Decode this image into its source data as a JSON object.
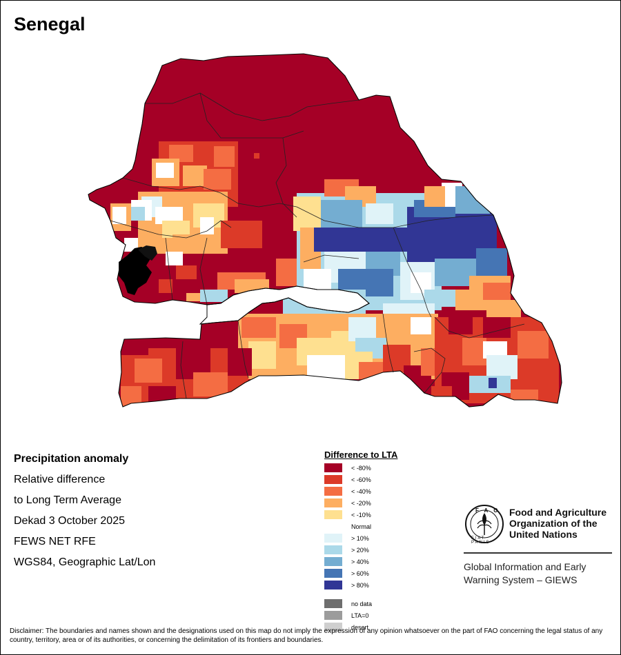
{
  "title": "Senegal",
  "info": {
    "heading": "Precipitation anomaly",
    "lines": [
      "Relative difference",
      "to Long Term Average",
      "Dekad 3 October 2025",
      "FEWS NET RFE",
      "WGS84, Geographic Lat/Lon"
    ]
  },
  "legend": {
    "title": "Difference to LTA",
    "items": [
      {
        "label": "< -80%",
        "color": "#a50026"
      },
      {
        "label": "< -60%",
        "color": "#dc3a28"
      },
      {
        "label": "< -40%",
        "color": "#f46d43"
      },
      {
        "label": "< -20%",
        "color": "#fdae61"
      },
      {
        "label": "< -10%",
        "color": "#fee090"
      },
      {
        "label": "> 10%",
        "color": "#e0f3f8"
      },
      {
        "label": "> 20%",
        "color": "#abd9e9"
      },
      {
        "label": "> 40%",
        "color": "#74add1"
      },
      {
        "label": "> 60%",
        "color": "#4575b4"
      },
      {
        "label": "> 80%",
        "color": "#313695"
      }
    ],
    "normal_label": "Normal",
    "extra": [
      {
        "label": "no data",
        "color": "#6e6e6e"
      },
      {
        "label": "LTA=0",
        "color": "#9c9c9c"
      },
      {
        "label": "desert",
        "color": "#cfcfcf"
      }
    ]
  },
  "fao": {
    "logo_text": "FAO",
    "logo_motto": "FIAT PANIS",
    "name_lines": [
      "Food and Agriculture",
      "Organization of the",
      "United Nations"
    ],
    "giews_lines": [
      "Global Information and Early",
      "Warning System – GIEWS"
    ]
  },
  "disclaimer": "Disclaimer: The boundaries and names shown and the designations used on this map do not imply the expression of any opinion whatsoever on the part of FAO concerning the legal status of any country, territory, area or of its authorities, or concerning the delimitation of its frontiers and boundaries."
}
